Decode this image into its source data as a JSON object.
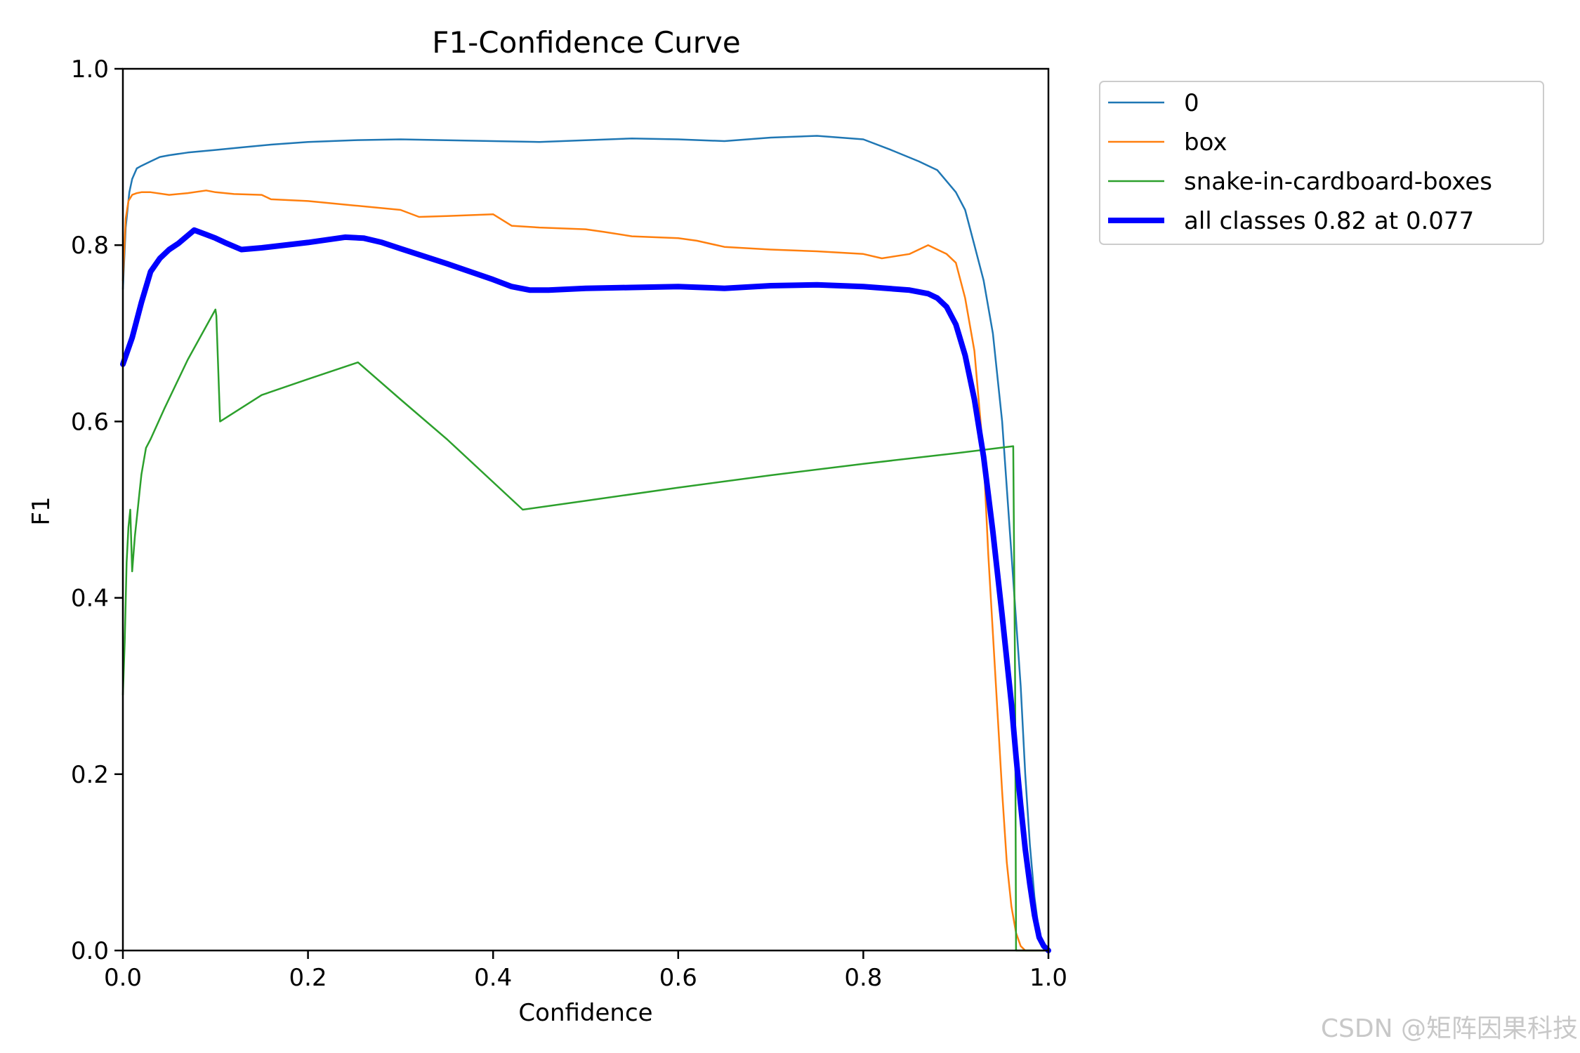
{
  "watermark": "CSDN @矩阵因果科技",
  "chart_data": {
    "type": "line",
    "title": "F1-Confidence Curve",
    "xlabel": "Confidence",
    "ylabel": "F1",
    "xlim": [
      0,
      1
    ],
    "ylim": [
      0,
      1
    ],
    "x_ticks": [
      "0.0",
      "0.2",
      "0.4",
      "0.6",
      "0.8",
      "1.0"
    ],
    "y_ticks": [
      "0.0",
      "0.2",
      "0.4",
      "0.6",
      "0.8",
      "1.0"
    ],
    "grid": false,
    "legend_position": "outside-top-right",
    "series": [
      {
        "name": "0",
        "color": "#1f77b4",
        "width": 2.5,
        "x": [
          0.0,
          0.003,
          0.007,
          0.01,
          0.015,
          0.02,
          0.03,
          0.04,
          0.05,
          0.07,
          0.1,
          0.13,
          0.16,
          0.2,
          0.25,
          0.3,
          0.35,
          0.4,
          0.45,
          0.5,
          0.55,
          0.6,
          0.65,
          0.7,
          0.75,
          0.8,
          0.83,
          0.86,
          0.88,
          0.9,
          0.91,
          0.92,
          0.93,
          0.94,
          0.95,
          0.96,
          0.97,
          0.975,
          0.98,
          0.985,
          0.99,
          0.995,
          1.0
        ],
        "y": [
          0.75,
          0.82,
          0.86,
          0.875,
          0.887,
          0.89,
          0.895,
          0.9,
          0.902,
          0.905,
          0.908,
          0.911,
          0.914,
          0.917,
          0.919,
          0.92,
          0.919,
          0.918,
          0.917,
          0.919,
          0.921,
          0.92,
          0.918,
          0.922,
          0.924,
          0.92,
          0.908,
          0.895,
          0.885,
          0.86,
          0.84,
          0.8,
          0.76,
          0.7,
          0.6,
          0.45,
          0.3,
          0.2,
          0.12,
          0.06,
          0.02,
          0.005,
          0.0
        ]
      },
      {
        "name": "box",
        "color": "#ff7f0e",
        "width": 2.5,
        "x": [
          0.0,
          0.003,
          0.006,
          0.01,
          0.015,
          0.02,
          0.03,
          0.05,
          0.07,
          0.09,
          0.1,
          0.12,
          0.15,
          0.16,
          0.2,
          0.25,
          0.3,
          0.32,
          0.35,
          0.4,
          0.42,
          0.45,
          0.5,
          0.52,
          0.55,
          0.6,
          0.62,
          0.65,
          0.7,
          0.75,
          0.8,
          0.82,
          0.85,
          0.87,
          0.88,
          0.89,
          0.9,
          0.91,
          0.92,
          0.93,
          0.935,
          0.94,
          0.945,
          0.95,
          0.955,
          0.96,
          0.965,
          0.97,
          0.975,
          1.0
        ],
        "y": [
          0.76,
          0.83,
          0.85,
          0.857,
          0.859,
          0.86,
          0.86,
          0.857,
          0.859,
          0.862,
          0.86,
          0.858,
          0.857,
          0.852,
          0.85,
          0.845,
          0.84,
          0.832,
          0.833,
          0.835,
          0.822,
          0.82,
          0.818,
          0.815,
          0.81,
          0.808,
          0.805,
          0.798,
          0.795,
          0.793,
          0.79,
          0.785,
          0.79,
          0.8,
          0.795,
          0.79,
          0.78,
          0.74,
          0.68,
          0.56,
          0.45,
          0.36,
          0.27,
          0.18,
          0.1,
          0.05,
          0.02,
          0.005,
          0.0,
          0.0
        ]
      },
      {
        "name": "snake-in-cardboard-boxes",
        "color": "#2ca02c",
        "width": 2.5,
        "x": [
          0.0,
          0.002,
          0.004,
          0.006,
          0.008,
          0.01,
          0.013,
          0.016,
          0.018,
          0.02,
          0.025,
          0.03,
          0.045,
          0.07,
          0.1,
          0.101,
          0.105,
          0.15,
          0.2,
          0.254,
          0.3,
          0.35,
          0.432,
          0.5,
          0.6,
          0.7,
          0.8,
          0.9,
          0.962,
          0.964,
          0.965,
          1.0
        ],
        "y": [
          0.29,
          0.35,
          0.44,
          0.48,
          0.5,
          0.43,
          0.47,
          0.5,
          0.52,
          0.54,
          0.57,
          0.58,
          0.615,
          0.67,
          0.727,
          0.72,
          0.6,
          0.63,
          0.648,
          0.667,
          0.625,
          0.58,
          0.5,
          0.51,
          0.525,
          0.539,
          0.552,
          0.564,
          0.572,
          0.3,
          0.0,
          0.0
        ]
      },
      {
        "name": "all classes 0.82 at 0.077",
        "color": "#0000ff",
        "width": 8,
        "x": [
          0.0,
          0.01,
          0.02,
          0.03,
          0.04,
          0.05,
          0.06,
          0.077,
          0.09,
          0.1,
          0.11,
          0.128,
          0.15,
          0.2,
          0.24,
          0.26,
          0.28,
          0.3,
          0.35,
          0.4,
          0.42,
          0.44,
          0.46,
          0.5,
          0.55,
          0.6,
          0.65,
          0.7,
          0.75,
          0.8,
          0.85,
          0.87,
          0.88,
          0.89,
          0.9,
          0.91,
          0.92,
          0.93,
          0.94,
          0.95,
          0.96,
          0.965,
          0.97,
          0.975,
          0.98,
          0.985,
          0.99,
          0.995,
          1.0
        ],
        "y": [
          0.665,
          0.695,
          0.735,
          0.77,
          0.785,
          0.795,
          0.802,
          0.817,
          0.812,
          0.808,
          0.803,
          0.795,
          0.797,
          0.803,
          0.809,
          0.808,
          0.803,
          0.796,
          0.779,
          0.761,
          0.753,
          0.749,
          0.749,
          0.751,
          0.752,
          0.753,
          0.751,
          0.754,
          0.755,
          0.753,
          0.749,
          0.745,
          0.74,
          0.73,
          0.71,
          0.675,
          0.625,
          0.56,
          0.475,
          0.38,
          0.28,
          0.22,
          0.165,
          0.115,
          0.075,
          0.04,
          0.015,
          0.005,
          0.0
        ]
      }
    ]
  }
}
